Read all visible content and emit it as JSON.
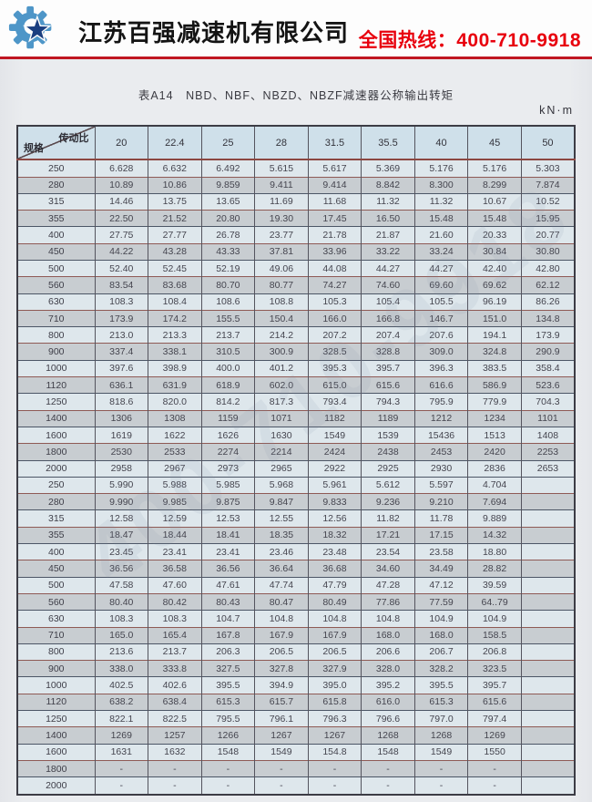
{
  "header": {
    "logo_icon": "gear-star-logo",
    "company": "江苏百强减速机有限公司",
    "hotline": "全国热线：400-710-9918"
  },
  "page": {
    "title": "表A14　NBD、NBF、NBZD、NBZF减速器公称输出转矩",
    "unit": "kN·m",
    "watermark": "400-710-9918"
  },
  "colors": {
    "accent_red": "#e8000d",
    "rule_red": "#c01622",
    "header_cell_bg": "#cfe0ea",
    "row_light": "#dee7ec",
    "row_gray": "#c8cdd1",
    "logo_blue": "#4e96c8",
    "logo_navy": "#1b3f80"
  },
  "table": {
    "corner": {
      "top": "传动比",
      "bottom": "规格"
    },
    "ratio_columns": [
      "20",
      "22.4",
      "25",
      "28",
      "31.5",
      "35.5",
      "40",
      "45",
      "50"
    ],
    "sections": [
      {
        "rows": [
          {
            "spec": "250",
            "values": [
              "6.628",
              "6.632",
              "6.492",
              "5.615",
              "5.617",
              "5.369",
              "5.176",
              "5.176",
              "5.303"
            ]
          },
          {
            "spec": "280",
            "values": [
              "10.89",
              "10.86",
              "9.859",
              "9.411",
              "9.414",
              "8.842",
              "8.300",
              "8.299",
              "7.874"
            ]
          },
          {
            "spec": "315",
            "values": [
              "14.46",
              "13.75",
              "13.65",
              "11.69",
              "11.68",
              "11.32",
              "11.32",
              "10.67",
              "10.52"
            ]
          },
          {
            "spec": "355",
            "values": [
              "22.50",
              "21.52",
              "20.80",
              "19.30",
              "17.45",
              "16.50",
              "15.48",
              "15.48",
              "15.95"
            ]
          },
          {
            "spec": "400",
            "values": [
              "27.75",
              "27.77",
              "26.78",
              "23.77",
              "21.78",
              "21.87",
              "21.60",
              "20.33",
              "20.77"
            ]
          },
          {
            "spec": "450",
            "values": [
              "44.22",
              "43.28",
              "43.33",
              "37.81",
              "33.96",
              "33.22",
              "33.24",
              "30.84",
              "30.80"
            ]
          },
          {
            "spec": "500",
            "values": [
              "52.40",
              "52.45",
              "52.19",
              "49.06",
              "44.08",
              "44.27",
              "44.27",
              "42.40",
              "42.80"
            ]
          },
          {
            "spec": "560",
            "values": [
              "83.54",
              "83.68",
              "80.70",
              "80.77",
              "74.27",
              "74.60",
              "69.60",
              "69.62",
              "62.12"
            ]
          },
          {
            "spec": "630",
            "values": [
              "108.3",
              "108.4",
              "108.6",
              "108.8",
              "105.3",
              "105.4",
              "105.5",
              "96.19",
              "86.26"
            ]
          },
          {
            "spec": "710",
            "values": [
              "173.9",
              "174.2",
              "155.5",
              "150.4",
              "166.0",
              "166.8",
              "146.7",
              "151.0",
              "134.8"
            ]
          },
          {
            "spec": "800",
            "values": [
              "213.0",
              "213.3",
              "213.7",
              "214.2",
              "207.2",
              "207.4",
              "207.6",
              "194.1",
              "173.9"
            ]
          },
          {
            "spec": "900",
            "values": [
              "337.4",
              "338.1",
              "310.5",
              "300.9",
              "328.5",
              "328.8",
              "309.0",
              "324.8",
              "290.9"
            ]
          },
          {
            "spec": "1000",
            "values": [
              "397.6",
              "398.9",
              "400.0",
              "401.2",
              "395.3",
              "395.7",
              "396.3",
              "383.5",
              "358.4"
            ]
          },
          {
            "spec": "1120",
            "values": [
              "636.1",
              "631.9",
              "618.9",
              "602.0",
              "615.0",
              "615.6",
              "616.6",
              "586.9",
              "523.6"
            ]
          },
          {
            "spec": "1250",
            "values": [
              "818.6",
              "820.0",
              "814.2",
              "817.3",
              "793.4",
              "794.3",
              "795.9",
              "779.9",
              "704.3"
            ]
          },
          {
            "spec": "1400",
            "values": [
              "1306",
              "1308",
              "1159",
              "1071",
              "1182",
              "1189",
              "1212",
              "1234",
              "1101"
            ]
          },
          {
            "spec": "1600",
            "values": [
              "1619",
              "1622",
              "1626",
              "1630",
              "1549",
              "1539",
              "15436",
              "1513",
              "1408"
            ]
          },
          {
            "spec": "1800",
            "values": [
              "2530",
              "2533",
              "2274",
              "2214",
              "2424",
              "2438",
              "2453",
              "2420",
              "2253"
            ]
          },
          {
            "spec": "2000",
            "values": [
              "2958",
              "2967",
              "2973",
              "2965",
              "2922",
              "2925",
              "2930",
              "2836",
              "2653"
            ]
          }
        ]
      },
      {
        "rows": [
          {
            "spec": "250",
            "values": [
              "5.990",
              "5.988",
              "5.985",
              "5.968",
              "5.961",
              "5.612",
              "5.597",
              "4.704",
              ""
            ]
          },
          {
            "spec": "280",
            "values": [
              "9.990",
              "9.985",
              "9.875",
              "9.847",
              "9.833",
              "9.236",
              "9.210",
              "7.694",
              ""
            ]
          },
          {
            "spec": "315",
            "values": [
              "12.58",
              "12.59",
              "12.53",
              "12.55",
              "12.56",
              "11.82",
              "11.78",
              "9.889",
              ""
            ]
          },
          {
            "spec": "355",
            "values": [
              "18.47",
              "18.44",
              "18.41",
              "18.35",
              "18.32",
              "17.21",
              "17.15",
              "14.32",
              ""
            ]
          },
          {
            "spec": "400",
            "values": [
              "23.45",
              "23.41",
              "23.41",
              "23.46",
              "23.48",
              "23.54",
              "23.58",
              "18.80",
              ""
            ]
          },
          {
            "spec": "450",
            "values": [
              "36.56",
              "36.58",
              "36.56",
              "36.64",
              "36.68",
              "34.60",
              "34.49",
              "28.82",
              ""
            ]
          },
          {
            "spec": "500",
            "values": [
              "47.58",
              "47.60",
              "47.61",
              "47.74",
              "47.79",
              "47.28",
              "47.12",
              "39.59",
              ""
            ]
          },
          {
            "spec": "560",
            "values": [
              "80.40",
              "80.42",
              "80.43",
              "80.47",
              "80.49",
              "77.86",
              "77.59",
              "64..79",
              ""
            ]
          },
          {
            "spec": "630",
            "values": [
              "108.3",
              "108.3",
              "104.7",
              "104.8",
              "104.8",
              "104.8",
              "104.9",
              "104.9",
              ""
            ]
          },
          {
            "spec": "710",
            "values": [
              "165.0",
              "165.4",
              "167.8",
              "167.9",
              "167.9",
              "168.0",
              "168.0",
              "158.5",
              ""
            ]
          },
          {
            "spec": "800",
            "values": [
              "213.6",
              "213.7",
              "206.3",
              "206.5",
              "206.5",
              "206.6",
              "206.7",
              "206.8",
              ""
            ]
          },
          {
            "spec": "900",
            "values": [
              "338.0",
              "333.8",
              "327.5",
              "327.8",
              "327.9",
              "328.0",
              "328.2",
              "323.5",
              ""
            ]
          },
          {
            "spec": "1000",
            "values": [
              "402.5",
              "402.6",
              "395.5",
              "394.9",
              "395.0",
              "395.2",
              "395.5",
              "395.7",
              ""
            ]
          },
          {
            "spec": "1120",
            "values": [
              "638.2",
              "638.4",
              "615.3",
              "615.7",
              "615.8",
              "616.0",
              "615.3",
              "615.6",
              ""
            ]
          },
          {
            "spec": "1250",
            "values": [
              "822.1",
              "822.5",
              "795.5",
              "796.1",
              "796.3",
              "796.6",
              "797.0",
              "797.4",
              ""
            ]
          },
          {
            "spec": "1400",
            "values": [
              "1269",
              "1257",
              "1266",
              "1267",
              "1267",
              "1268",
              "1268",
              "1269",
              ""
            ]
          },
          {
            "spec": "1600",
            "values": [
              "1631",
              "1632",
              "1548",
              "1549",
              "154.8",
              "1548",
              "1549",
              "1550",
              ""
            ]
          },
          {
            "spec": "1800",
            "values": [
              "-",
              "-",
              "-",
              "-",
              "-",
              "-",
              "-",
              "-",
              ""
            ]
          },
          {
            "spec": "2000",
            "values": [
              "-",
              "-",
              "-",
              "-",
              "-",
              "-",
              "-",
              "-",
              ""
            ]
          }
        ]
      }
    ]
  }
}
